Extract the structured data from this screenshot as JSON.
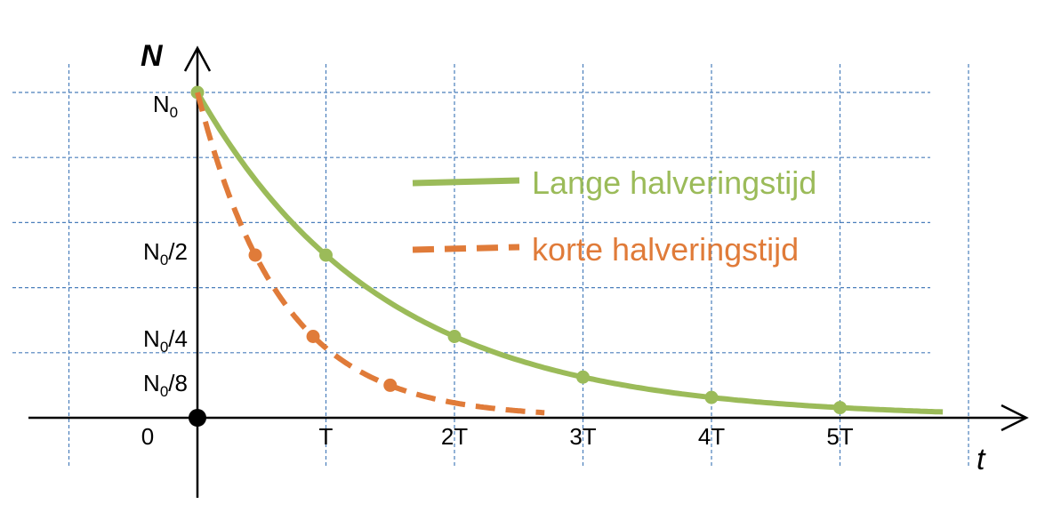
{
  "chart_data": {
    "type": "line",
    "xlabel": "t",
    "ylabel": "N",
    "x_ticks": [
      {
        "value": 0,
        "label": "0"
      },
      {
        "value": 1,
        "label": "T"
      },
      {
        "value": 2,
        "label": "2T"
      },
      {
        "value": 3,
        "label": "3T"
      },
      {
        "value": 4,
        "label": "4T"
      },
      {
        "value": 5,
        "label": "5T"
      }
    ],
    "y_ticks": [
      {
        "value": 1,
        "base": "N",
        "sub": "0",
        "suffix": ""
      },
      {
        "value": 0.5,
        "base": "N",
        "sub": "0",
        "suffix": "/2"
      },
      {
        "value": 0.25,
        "base": "N",
        "sub": "0",
        "suffix": "/4"
      },
      {
        "value": 0.125,
        "base": "N",
        "sub": "0",
        "suffix": "/8"
      }
    ],
    "xlim": [
      -1,
      6
    ],
    "ylim": [
      0,
      1
    ],
    "grid": true,
    "origin_marker": true,
    "legend_position": "center-right",
    "series": [
      {
        "name": "Lange halveringstijd",
        "color": "#9bbb59",
        "style": "solid",
        "half_life": 1,
        "x_end": 5.8,
        "markers": [
          {
            "x": 0,
            "y": 1
          },
          {
            "x": 1,
            "y": 0.5
          },
          {
            "x": 2,
            "y": 0.25
          },
          {
            "x": 3,
            "y": 0.125
          },
          {
            "x": 4,
            "y": 0.0625
          },
          {
            "x": 5,
            "y": 0.03125
          }
        ]
      },
      {
        "name": "korte halveringstijd",
        "color": "#e07b39",
        "style": "dashed",
        "half_life": 0.45,
        "x_end": 2.7,
        "markers": [
          {
            "x": 0.45,
            "y": 0.5
          },
          {
            "x": 0.9,
            "y": 0.25
          },
          {
            "x": 1.5,
            "y": 0.1
          }
        ]
      }
    ]
  }
}
